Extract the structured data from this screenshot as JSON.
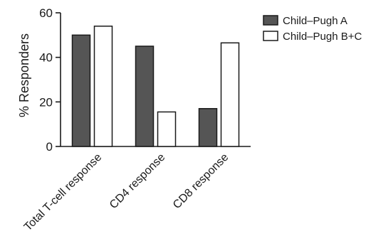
{
  "chart_data": {
    "type": "bar",
    "ylabel": "% Responders",
    "ylim": [
      0,
      60
    ],
    "yticks": [
      0,
      20,
      40,
      60
    ],
    "categories": [
      "Total T-cell response",
      "CD4 response",
      "CD8 response"
    ],
    "series": [
      {
        "name": "Child–Pugh A",
        "color": "#555555",
        "values": [
          50,
          45,
          17
        ]
      },
      {
        "name": "Child–Pugh B+C",
        "color": "#ffffff",
        "values": [
          54,
          15.5,
          46.5
        ]
      }
    ],
    "legend_position": "top-right",
    "grid": false
  },
  "colors": {
    "axis": "#1a1a1a",
    "bar_stroke": "#1a1a1a",
    "background": "#ffffff"
  }
}
